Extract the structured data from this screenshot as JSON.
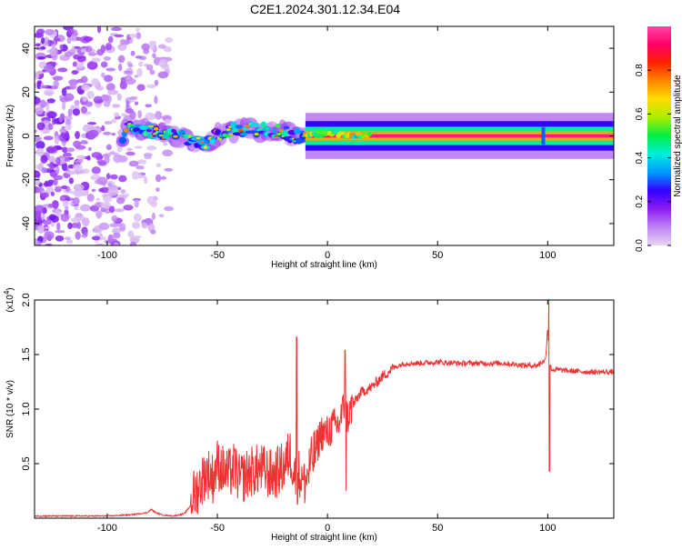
{
  "title": "C2E1.2024.301.12.34.E04",
  "chart_data": [
    {
      "type": "heatmap",
      "xlabel": "Height of straight line (km)",
      "ylabel": "Frequency (Hz)",
      "xlim": [
        -133,
        130
      ],
      "ylim": [
        -50,
        50
      ],
      "xticks": [
        -100,
        -50,
        0,
        50,
        100
      ],
      "xtick_labels": [
        "-100",
        "-50",
        "0",
        "50",
        "100"
      ],
      "yticks": [
        -40,
        -20,
        0,
        20,
        40
      ],
      "ytick_labels": [
        "-40",
        "-20",
        "0",
        "20",
        "40"
      ],
      "grid": false,
      "colorbar": {
        "label": "Normalized spectral amplitude",
        "range": [
          0,
          1
        ],
        "ticks": [
          0,
          0.2,
          0.4,
          0.6,
          0.8
        ],
        "tick_labels": [
          "0.0",
          "0.2",
          "0.4",
          "0.6",
          "0.8"
        ],
        "colors": [
          "#e6d5f5",
          "#c084f5",
          "#8a1df0",
          "#3300ff",
          "#0099ff",
          "#00eedd",
          "#00ee44",
          "#aaee00",
          "#ffdd00",
          "#ff8800",
          "#ff2200",
          "#ff0066",
          "#ff44aa"
        ]
      },
      "features": {
        "noise_region_x": [
          -133,
          -72
        ],
        "ridge_points": [
          [
            -92,
            5
          ],
          [
            -85,
            3
          ],
          [
            -78,
            2
          ],
          [
            -70,
            0
          ],
          [
            -62,
            -2
          ],
          [
            -55,
            -4
          ],
          [
            -50,
            1
          ],
          [
            -40,
            3
          ],
          [
            -30,
            3
          ],
          [
            -20,
            2
          ],
          [
            -15,
            0
          ],
          [
            -10,
            0
          ],
          [
            0,
            1
          ],
          [
            5,
            1
          ],
          [
            15,
            0
          ],
          [
            100,
            0
          ],
          [
            130,
            0
          ]
        ],
        "steady_band_x": [
          -10,
          130
        ],
        "spike_x": 98
      }
    },
    {
      "type": "line",
      "xlabel": "Height of straight line (km)",
      "ylabel": "SNR (10 * v/v)",
      "scale_label_base": "(x10",
      "scale_label_exp": "4",
      "scale_label_end": ")",
      "xlim": [
        -133,
        130
      ],
      "ylim": [
        0,
        2.0
      ],
      "xticks": [
        -100,
        -50,
        0,
        50,
        100
      ],
      "xtick_labels": [
        "-100",
        "-50",
        "0",
        "50",
        "100"
      ],
      "yticks": [
        0.5,
        1.0,
        1.5,
        2.0
      ],
      "ytick_labels": [
        "0.5",
        "1.0",
        "1.5",
        "2.0"
      ],
      "line_color": "#ee3333",
      "series": [
        {
          "x": [
            -133,
            -120,
            -100,
            -90,
            -82,
            -80,
            -78,
            -75,
            -70,
            -65,
            -62,
            -58,
            -55,
            -52,
            -50,
            -48,
            -45,
            -42,
            -40,
            -35,
            -30,
            -25,
            -20,
            -17,
            -15,
            -14,
            -13,
            -10,
            -8,
            -5,
            -3,
            0,
            2,
            5,
            7,
            8,
            9,
            10,
            12,
            15,
            20,
            25,
            30,
            35,
            40,
            50,
            60,
            70,
            80,
            90,
            95,
            99,
            100,
            101,
            102,
            105,
            110,
            120,
            130
          ],
          "y": [
            0.02,
            0.02,
            0.02,
            0.03,
            0.05,
            0.08,
            0.05,
            0.03,
            0.02,
            0.04,
            0.12,
            0.25,
            0.38,
            0.32,
            0.45,
            0.4,
            0.35,
            0.42,
            0.3,
            0.38,
            0.4,
            0.34,
            0.42,
            0.55,
            0.38,
            0.3,
            0.35,
            0.28,
            0.42,
            0.6,
            0.75,
            0.74,
            0.8,
            0.82,
            0.95,
            1.05,
            0.88,
            0.92,
            1.05,
            1.15,
            1.2,
            1.3,
            1.38,
            1.42,
            1.42,
            1.43,
            1.42,
            1.42,
            1.42,
            1.4,
            1.4,
            1.45,
            1.75,
            1.4,
            1.36,
            1.36,
            1.35,
            1.34,
            1.34
          ]
        }
      ],
      "peaks": [
        [
          -14,
          1.66
        ],
        [
          8,
          1.54
        ],
        [
          100.5,
          2.0
        ],
        [
          100.8,
          0.43
        ],
        [
          8.5,
          0.25
        ],
        [
          -11,
          0.35
        ]
      ]
    }
  ]
}
